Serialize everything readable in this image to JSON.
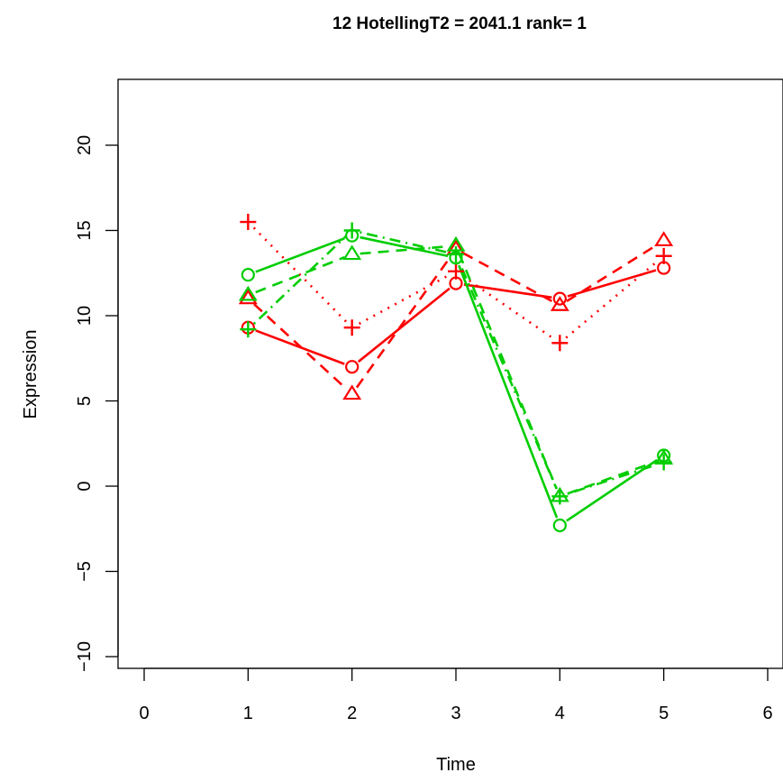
{
  "chart_data": {
    "type": "line",
    "title": "12  HotellingT2 = 2041.1  rank= 1",
    "xlabel": "Time",
    "ylabel": "Expression",
    "xlim": [
      0,
      6
    ],
    "ylim": [
      -10,
      20
    ],
    "x_ticks": [
      "0",
      "1",
      "2",
      "3",
      "4",
      "5",
      "6"
    ],
    "y_ticks": [
      "−10",
      "−5",
      "0",
      "5",
      "10",
      "15",
      "20"
    ],
    "grid": false,
    "legend": "none",
    "colors": {
      "red": "#ff0000",
      "green": "#00cd00"
    },
    "series": [
      {
        "color": "#ff0000",
        "line": "solid",
        "marker": "circle",
        "x": [
          1,
          2,
          3,
          4,
          5
        ],
        "y": [
          9.3,
          7.0,
          11.9,
          11.0,
          12.8
        ]
      },
      {
        "color": "#ff0000",
        "line": "dashed",
        "marker": "triangle",
        "x": [
          1,
          2,
          3,
          4,
          5
        ],
        "y": [
          11.0,
          5.4,
          13.9,
          10.6,
          14.4
        ]
      },
      {
        "color": "#ff0000",
        "line": "dotted",
        "marker": "plus",
        "x": [
          1,
          2,
          3,
          4,
          5
        ],
        "y": [
          15.5,
          9.3,
          12.6,
          8.4,
          13.5
        ]
      },
      {
        "color": "#00cd00",
        "line": "solid",
        "marker": "circle",
        "x": [
          1,
          2,
          3,
          4,
          5
        ],
        "y": [
          12.4,
          14.7,
          13.4,
          -2.3,
          1.8
        ]
      },
      {
        "color": "#00cd00",
        "line": "dashed",
        "marker": "triangle",
        "x": [
          1,
          2,
          3,
          4,
          5
        ],
        "y": [
          11.2,
          13.6,
          14.1,
          -0.6,
          1.6
        ]
      },
      {
        "color": "#00cd00",
        "line": "dotdash",
        "marker": "plus",
        "x": [
          1,
          2,
          3,
          4,
          5
        ],
        "y": [
          9.2,
          15.0,
          13.6,
          -0.6,
          1.4
        ]
      }
    ]
  }
}
